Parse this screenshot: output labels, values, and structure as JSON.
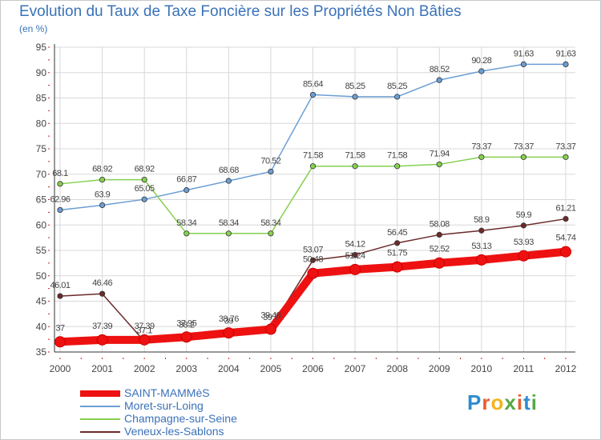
{
  "title": "Evolution du Taux de Taxe Foncière sur les Propriétés Non Bâties",
  "unit_label": "(en %)",
  "logo": {
    "text": "Proxiti",
    "colors": [
      "#e95d2e",
      "#f2b51c",
      "#57a844",
      "#2e8ccf"
    ]
  },
  "chart_data": {
    "type": "line",
    "x": [
      "2000",
      "2001",
      "2002",
      "2003",
      "2004",
      "2005",
      "2006",
      "2007",
      "2008",
      "2009",
      "2010",
      "2011",
      "2012"
    ],
    "ylim": [
      35,
      95
    ],
    "yticks": [
      35,
      40,
      45,
      50,
      55,
      60,
      65,
      70,
      75,
      80,
      85,
      90,
      95
    ],
    "grid": true,
    "legend_position": "bottom-left",
    "series": [
      {
        "name": "SAINT-MAMMèS",
        "color": "#ee1111",
        "values": [
          37,
          37.39,
          37.39,
          37.95,
          38.76,
          39.48,
          50.48,
          51.24,
          51.75,
          52.52,
          53.13,
          53.93,
          54.74
        ],
        "labels": [
          "37",
          "37.39",
          "37.39",
          "37.95",
          "38.76",
          "39.48",
          "50.48",
          "51.24",
          "51.75",
          "52.52",
          "53.13",
          "53.93",
          "54.74"
        ]
      },
      {
        "name": "Moret-sur-Loing",
        "color": "#6b9ed4",
        "values": [
          62.96,
          63.9,
          65.05,
          66.87,
          68.68,
          70.52,
          85.64,
          85.25,
          85.25,
          88.52,
          90.28,
          91.63,
          91.63
        ],
        "labels": [
          "62.96",
          "63.9",
          "65.05",
          "66.87",
          "68.68",
          "70.52",
          "85.64",
          "85.25",
          "85.25",
          "88.52",
          "90.28",
          "91.63",
          "91.63"
        ]
      },
      {
        "name": "Champagne-sur-Seine",
        "color": "#86cf4f",
        "values": [
          68.1,
          68.92,
          68.92,
          58.34,
          58.34,
          58.34,
          71.58,
          71.58,
          71.58,
          71.94,
          73.37,
          73.37,
          73.37
        ],
        "labels": [
          "68.1",
          "68.92",
          "68.92",
          "58.34",
          "58.34",
          "58.34",
          "71.58",
          "71.58",
          "71.58",
          "71.94",
          "73.37",
          "73.37",
          "73.37"
        ]
      },
      {
        "name": "Veneux-les-Sablons",
        "color": "#6b2a2a",
        "values": [
          46.01,
          46.46,
          37.1,
          38.2,
          39,
          39.7,
          53.07,
          54.12,
          56.45,
          58.08,
          58.9,
          59.9,
          61.21
        ],
        "labels": [
          "46.01",
          "46.46",
          "37.1",
          "38.2",
          "39",
          "39.7",
          "53.07",
          "54.12",
          "56.45",
          "58.08",
          "58.9",
          "59.9",
          "61.21"
        ]
      }
    ]
  }
}
